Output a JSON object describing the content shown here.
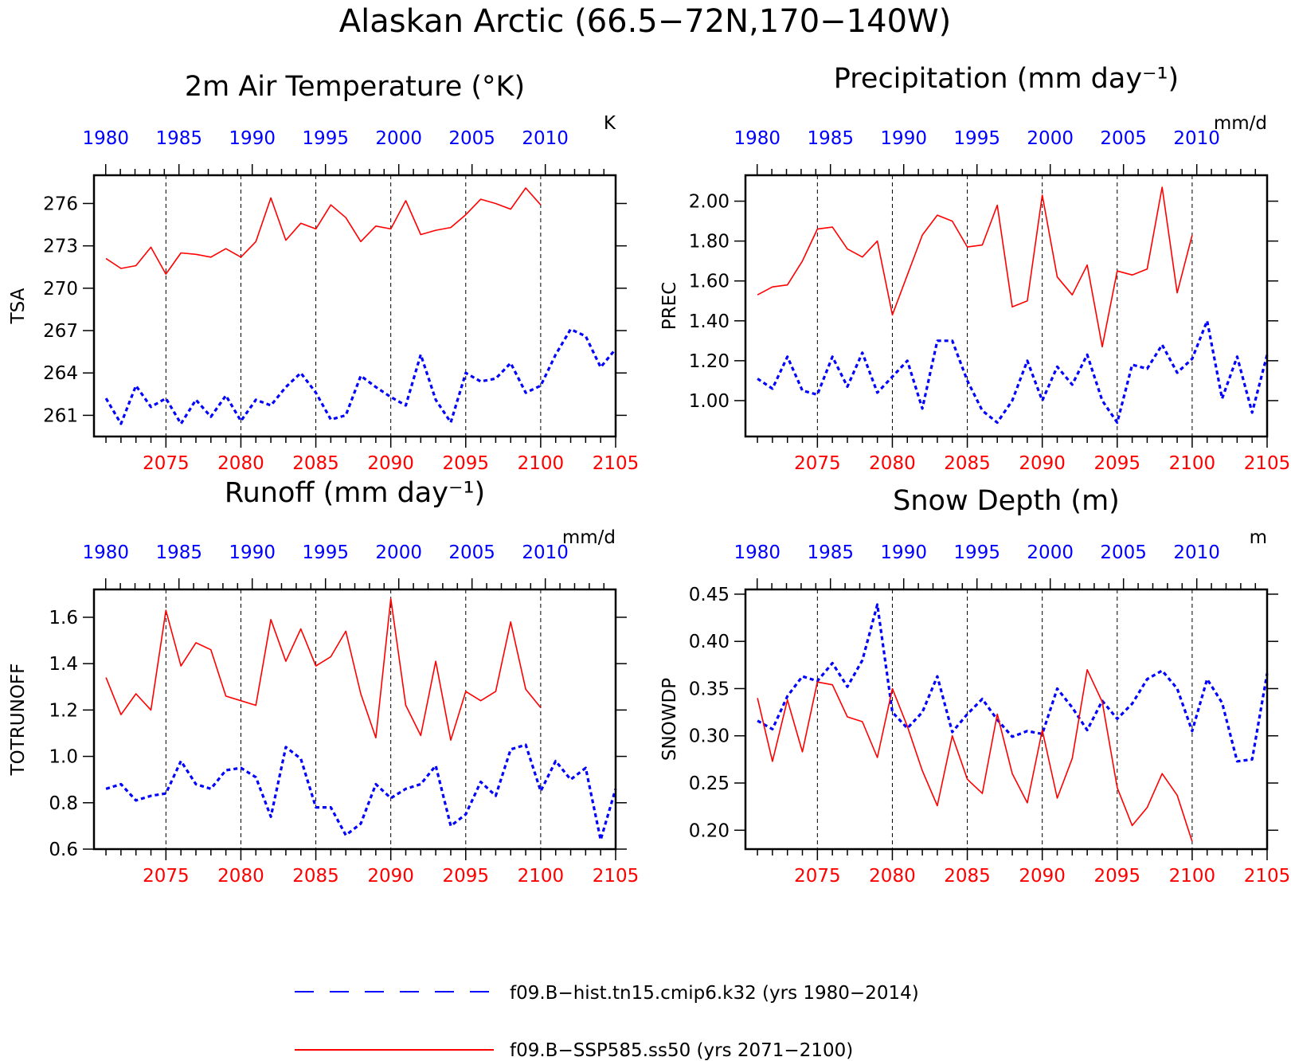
{
  "title": "Alaskan Arctic (66.5−72N,170−140W)",
  "colors": {
    "hist": "#0000ff",
    "ssp": "#ff0000",
    "axis": "#000000"
  },
  "legend": {
    "hist_label": "f09.B−hist.tn15.cmip6.k32 (yrs 1980−2014)",
    "ssp_label": "f09.B−SSP585.ss50 (yrs 2071−2100)"
  },
  "chart_data": [
    {
      "type": "line",
      "title": "2m Air Temperature (°K)",
      "ylabel": "TSA",
      "units": "K",
      "ylim": [
        259.5,
        278
      ],
      "yticks": [
        261,
        264,
        267,
        270,
        273,
        276
      ],
      "ytick_labels": [
        "261",
        "264",
        "267",
        "270",
        "273",
        "276"
      ],
      "series": [
        {
          "name": "f09.B−hist.tn15.cmip6.k32 (yrs 1980−2014)",
          "start": 1980,
          "values": [
            262.2,
            260.4,
            263.1,
            261.6,
            262.2,
            260.4,
            262.1,
            260.9,
            262.4,
            260.6,
            262.1,
            261.7,
            263.0,
            264.0,
            262.6,
            260.7,
            261.0,
            263.8,
            263.0,
            262.3,
            261.7,
            265.3,
            262.1,
            260.5,
            264.0,
            263.4,
            263.6,
            264.7,
            262.6,
            263.1,
            265.3,
            267.1,
            266.6,
            264.4,
            265.7
          ]
        },
        {
          "name": "f09.B−SSP585.ss50 (yrs 2071−2100)",
          "start": 2071,
          "values": [
            272.1,
            271.4,
            271.6,
            272.9,
            271.0,
            272.5,
            272.4,
            272.2,
            272.8,
            272.2,
            273.3,
            276.4,
            273.4,
            274.6,
            274.2,
            275.9,
            275.0,
            273.3,
            274.4,
            274.2,
            276.2,
            273.8,
            274.1,
            274.3,
            275.2,
            276.3,
            276.0,
            275.6,
            277.1,
            275.9
          ]
        }
      ]
    },
    {
      "type": "line",
      "title": "Precipitation (mm day⁻¹)",
      "ylabel": "PREC",
      "units": "mm/d",
      "ylim": [
        0.82,
        2.13
      ],
      "yticks": [
        1.0,
        1.2,
        1.4,
        1.6,
        1.8,
        2.0
      ],
      "ytick_labels": [
        "1.00",
        "1.20",
        "1.40",
        "1.60",
        "1.80",
        "2.00"
      ],
      "series": [
        {
          "name": "f09.B−hist.tn15.cmip6.k32 (yrs 1980−2014)",
          "start": 1980,
          "values": [
            1.11,
            1.06,
            1.22,
            1.05,
            1.03,
            1.22,
            1.07,
            1.24,
            1.04,
            1.12,
            1.2,
            0.96,
            1.3,
            1.3,
            1.1,
            0.95,
            0.89,
            1.0,
            1.2,
            1.0,
            1.17,
            1.08,
            1.23,
            1.0,
            0.89,
            1.18,
            1.16,
            1.28,
            1.14,
            1.21,
            1.4,
            1.01,
            1.22,
            0.94,
            1.23
          ]
        },
        {
          "name": "f09.B−SSP585.ss50 (yrs 2071−2100)",
          "start": 2071,
          "values": [
            1.53,
            1.57,
            1.58,
            1.7,
            1.86,
            1.87,
            1.76,
            1.72,
            1.8,
            1.43,
            1.63,
            1.83,
            1.93,
            1.9,
            1.77,
            1.78,
            1.98,
            1.47,
            1.5,
            2.03,
            1.62,
            1.53,
            1.68,
            1.27,
            1.65,
            1.63,
            1.66,
            2.07,
            1.54,
            1.83
          ]
        }
      ]
    },
    {
      "type": "line",
      "title": "Runoff (mm day⁻¹)",
      "ylabel": "TOTRUNOFF",
      "units": "mm/d",
      "ylim": [
        0.6,
        1.72
      ],
      "yticks": [
        0.6,
        0.8,
        1.0,
        1.2,
        1.4,
        1.6
      ],
      "ytick_labels": [
        "0.6",
        "0.8",
        "1.0",
        "1.2",
        "1.4",
        "1.6"
      ],
      "series": [
        {
          "name": "f09.B−hist.tn15.cmip6.k32 (yrs 1980−2014)",
          "start": 1980,
          "values": [
            0.86,
            0.88,
            0.81,
            0.83,
            0.84,
            0.98,
            0.88,
            0.86,
            0.94,
            0.95,
            0.91,
            0.74,
            1.04,
            0.99,
            0.78,
            0.78,
            0.66,
            0.71,
            0.88,
            0.82,
            0.86,
            0.88,
            0.96,
            0.7,
            0.75,
            0.89,
            0.83,
            1.03,
            1.05,
            0.85,
            0.98,
            0.9,
            0.95,
            0.64,
            0.86
          ]
        },
        {
          "name": "f09.B−SSP585.ss50 (yrs 2071−2100)",
          "start": 2071,
          "values": [
            1.34,
            1.18,
            1.27,
            1.2,
            1.63,
            1.39,
            1.49,
            1.46,
            1.26,
            1.24,
            1.22,
            1.59,
            1.41,
            1.55,
            1.39,
            1.43,
            1.54,
            1.27,
            1.08,
            1.68,
            1.22,
            1.09,
            1.41,
            1.07,
            1.28,
            1.24,
            1.28,
            1.58,
            1.29,
            1.21
          ]
        }
      ]
    },
    {
      "type": "line",
      "title": "Snow Depth (m)",
      "ylabel": "SNOWDP",
      "units": "m",
      "ylim": [
        0.18,
        0.455
      ],
      "yticks": [
        0.2,
        0.25,
        0.3,
        0.35,
        0.4,
        0.45
      ],
      "ytick_labels": [
        "0.20",
        "0.25",
        "0.30",
        "0.35",
        "0.40",
        "0.45"
      ],
      "series": [
        {
          "name": "f09.B−hist.tn15.cmip6.k32 (yrs 1980−2014)",
          "start": 1980,
          "values": [
            0.316,
            0.307,
            0.342,
            0.363,
            0.358,
            0.377,
            0.352,
            0.38,
            0.439,
            0.325,
            0.308,
            0.325,
            0.363,
            0.304,
            0.323,
            0.339,
            0.317,
            0.299,
            0.305,
            0.302,
            0.35,
            0.33,
            0.306,
            0.337,
            0.318,
            0.334,
            0.36,
            0.369,
            0.35,
            0.305,
            0.36,
            0.335,
            0.273,
            0.275,
            0.366
          ]
        },
        {
          "name": "f09.B−SSP585.ss50 (yrs 2071−2100)",
          "start": 2071,
          "values": [
            0.34,
            0.273,
            0.338,
            0.283,
            0.357,
            0.354,
            0.32,
            0.315,
            0.277,
            0.35,
            0.31,
            0.263,
            0.226,
            0.3,
            0.254,
            0.239,
            0.323,
            0.26,
            0.229,
            0.306,
            0.234,
            0.276,
            0.37,
            0.336,
            0.245,
            0.205,
            0.224,
            0.26,
            0.237,
            0.188
          ]
        }
      ]
    }
  ],
  "x_top_labels": [
    "1980",
    "1985",
    "1990",
    "1995",
    "2000",
    "2005",
    "2010"
  ],
  "x_bottom_labels": [
    "2075",
    "2080",
    "2085",
    "2090",
    "2095",
    "2100",
    "2105"
  ]
}
